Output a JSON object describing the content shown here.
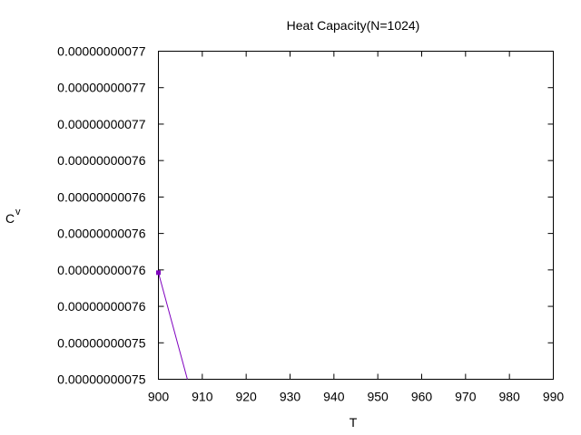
{
  "chart_data": {
    "type": "line",
    "title": "Heat Capacity(N=1024)",
    "xlabel": "T",
    "ylabel_main": "C",
    "ylabel_sub": "v",
    "xlim": [
      900,
      990
    ],
    "ylim": [
      7.5e-10,
      7.7e-10
    ],
    "x_ticks": [
      "900",
      "910",
      "920",
      "930",
      "940",
      "950",
      "960",
      "970",
      "980",
      "990"
    ],
    "y_ticks": [
      "0.00000000075",
      "0.00000000075",
      "0.00000000076",
      "0.00000000076",
      "0.00000000076",
      "0.00000000076",
      "0.00000000076",
      "0.00000000077",
      "0.00000000077",
      "0.00000000077"
    ],
    "grid": false,
    "series": [
      {
        "color": "#7f00bf",
        "marker": "square",
        "x": [
          900,
          906.6
        ],
        "y": [
          7.565e-10,
          7.5e-10
        ]
      }
    ]
  }
}
